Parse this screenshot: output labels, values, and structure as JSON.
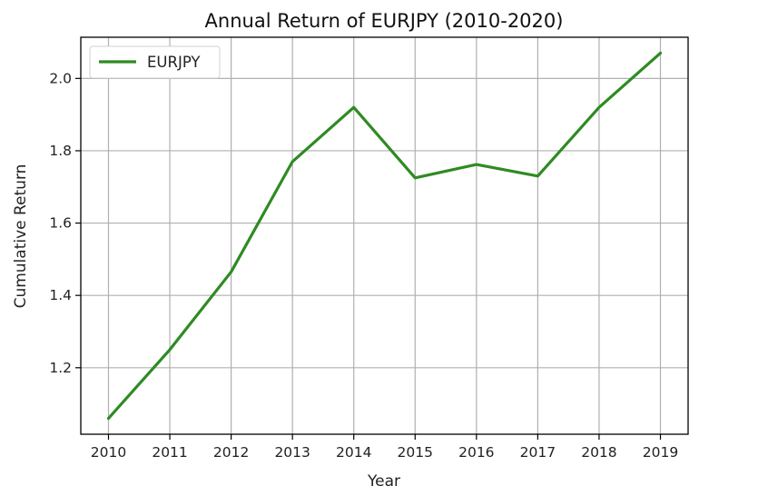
{
  "chart_data": {
    "type": "line",
    "title": "Annual  Return of EURJPY (2010-2020)",
    "xlabel": "Year",
    "ylabel": "Cumulative Return",
    "categories": [
      "2010",
      "2011",
      "2012",
      "2013",
      "2014",
      "2015",
      "2016",
      "2017",
      "2018",
      "2019"
    ],
    "series": [
      {
        "name": "EURJPY",
        "color": "#2e8b22",
        "values": [
          1.06,
          1.25,
          1.465,
          1.77,
          1.92,
          1.725,
          1.762,
          1.73,
          1.92,
          2.07
        ]
      }
    ],
    "yticks": [
      "1.2",
      "1.4",
      "1.6",
      "1.8",
      "2.0"
    ],
    "ylim": [
      1.0161,
      2.1139
    ],
    "grid": true,
    "legend_position": "upper-left"
  }
}
